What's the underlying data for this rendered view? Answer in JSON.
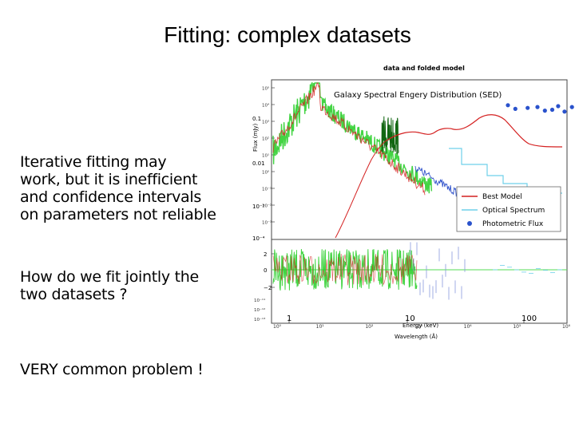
{
  "slide": {
    "title": "Fitting: complex datasets",
    "bullets": [
      "Iterative fitting may\nwork, but it is inefficient\nand confidence intervals\non parameters not reliable",
      "How do we fit jointly the\ntwo datasets ?",
      "VERY common problem !"
    ]
  },
  "chart_data": {
    "type": "line",
    "header": "data and folded model",
    "title": "Galaxy Spectral Engery Distribution (SED)",
    "xlabel": "Energy (keV)",
    "xlabel2": "Wavelength (Å)",
    "ylabel": "Flux (mJy)",
    "x_scale": "log",
    "y_scale": "log",
    "xlim": [
      1,
      1000000
    ],
    "x_ticks": [
      "1",
      "10",
      "100"
    ],
    "x_ticks_bottom": [
      "10¹",
      "10²",
      "10³",
      "10⁴",
      "10⁵",
      "10⁶"
    ],
    "y_ticks_left": [
      "0.1",
      "0.01",
      "10⁻³",
      "10⁻⁴"
    ],
    "y_ticks_inner": [
      "10⁵",
      "10⁴",
      "10³",
      "10²",
      "10¹",
      "10⁰",
      "10⁻¹",
      "10⁻²",
      "10⁻³"
    ],
    "resid_ticks": [
      "2",
      "0",
      "−2"
    ],
    "resid_ticks_inner": [
      "10⁻¹¹",
      "10⁻¹²",
      "10⁻¹³"
    ],
    "legend_position": "right",
    "colors": {
      "best_model": "#d42020",
      "optical": "#6fd0ea",
      "photometric": "#2a52cc",
      "xray_data": "#22cc22",
      "xray_dark": "#116611",
      "residual_line": "#55dd55"
    },
    "series": [
      {
        "name": "Best Model",
        "style": "line"
      },
      {
        "name": "Optical Spectrum",
        "style": "line"
      },
      {
        "name": "Photometric Flux",
        "style": "marker"
      }
    ],
    "photometric_points": {
      "log_x": [
        4.8,
        4.95,
        5.2,
        5.4,
        5.55,
        5.7,
        5.82,
        5.95,
        6.1,
        6.3,
        6.45,
        6.55,
        6.6,
        6.7,
        6.85
      ],
      "log_y": [
        3.9,
        3.7,
        3.75,
        3.8,
        3.6,
        3.65,
        3.85,
        3.55,
        3.8,
        3.75,
        4.0,
        4.1,
        4.05,
        3.85,
        3.6
      ]
    }
  }
}
